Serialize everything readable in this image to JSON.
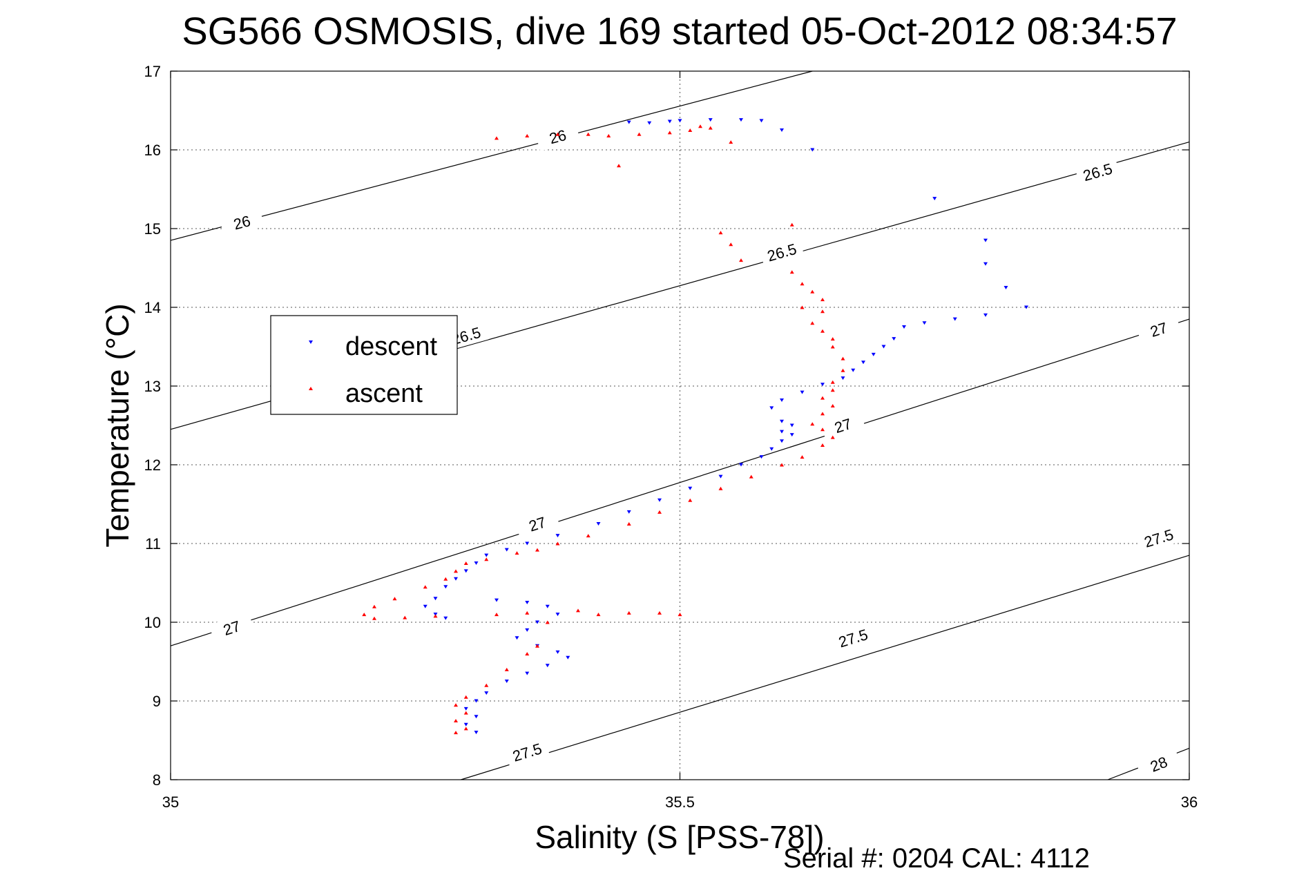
{
  "chart_data": {
    "type": "scatter",
    "title": "SG566 OSMOSIS, dive 169 started 05-Oct-2012 08:34:57",
    "xlabel": "Salinity (S [PSS-78])",
    "ylabel": "Temperature (°C)",
    "footer": "Serial #: 0204  CAL: 4112",
    "xlim": [
      35,
      36
    ],
    "ylim": [
      8,
      17
    ],
    "x_ticks": [
      35,
      35.5,
      36
    ],
    "y_ticks": [
      8,
      9,
      10,
      11,
      12,
      13,
      14,
      15,
      16,
      17
    ],
    "x_tick_labels": [
      "35",
      "35.5",
      "36"
    ],
    "y_tick_labels": [
      "8",
      "9",
      "10",
      "11",
      "12",
      "13",
      "14",
      "15",
      "16",
      "17"
    ],
    "grid": true,
    "legend_position": "left",
    "colors": {
      "descent": "#0000ff",
      "ascent": "#ff0000",
      "contour": "#000000"
    },
    "density_contours": [
      {
        "level": "26",
        "line": [
          [
            35,
            14.85
          ],
          [
            35.63,
            17.0
          ]
        ],
        "labels": [
          [
            35.07,
            15.08
          ],
          [
            35.38,
            16.17
          ]
        ]
      },
      {
        "level": "26.5",
        "line": [
          [
            35,
            12.45
          ],
          [
            36,
            16.1
          ]
        ],
        "labels": [
          [
            35.29,
            13.64
          ],
          [
            35.6,
            14.7
          ],
          [
            35.91,
            15.72
          ]
        ]
      },
      {
        "level": "27",
        "line": [
          [
            35,
            9.7
          ],
          [
            36,
            13.85
          ]
        ],
        "labels": [
          [
            35.06,
            9.93
          ],
          [
            35.36,
            11.25
          ],
          [
            35.66,
            12.5
          ],
          [
            35.97,
            13.72
          ]
        ]
      },
      {
        "level": "27.5",
        "line": [
          [
            35.285,
            8.0
          ],
          [
            36,
            10.85
          ]
        ],
        "labels": [
          [
            35.35,
            8.35
          ],
          [
            35.67,
            9.8
          ],
          [
            35.97,
            11.07
          ]
        ]
      },
      {
        "level": "28",
        "line": [
          [
            35.92,
            8.0
          ],
          [
            36,
            8.4
          ]
        ],
        "labels": [
          [
            35.97,
            8.2
          ]
        ]
      }
    ],
    "series": [
      {
        "name": "descent",
        "marker": "triangle-down",
        "points": [
          [
            35.45,
            16.35
          ],
          [
            35.47,
            16.34
          ],
          [
            35.49,
            16.36
          ],
          [
            35.5,
            16.37
          ],
          [
            35.53,
            16.38
          ],
          [
            35.56,
            16.38
          ],
          [
            35.58,
            16.37
          ],
          [
            35.6,
            16.25
          ],
          [
            35.63,
            16.0
          ],
          [
            35.75,
            15.38
          ],
          [
            35.8,
            14.85
          ],
          [
            35.8,
            14.55
          ],
          [
            35.82,
            14.25
          ],
          [
            35.84,
            14.0
          ],
          [
            35.8,
            13.9
          ],
          [
            35.77,
            13.85
          ],
          [
            35.74,
            13.8
          ],
          [
            35.72,
            13.75
          ],
          [
            35.71,
            13.6
          ],
          [
            35.7,
            13.5
          ],
          [
            35.69,
            13.4
          ],
          [
            35.68,
            13.3
          ],
          [
            35.67,
            13.2
          ],
          [
            35.66,
            13.1
          ],
          [
            35.64,
            13.02
          ],
          [
            35.62,
            12.92
          ],
          [
            35.6,
            12.82
          ],
          [
            35.59,
            12.72
          ],
          [
            35.6,
            12.55
          ],
          [
            35.61,
            12.5
          ],
          [
            35.6,
            12.42
          ],
          [
            35.61,
            12.38
          ],
          [
            35.6,
            12.3
          ],
          [
            35.59,
            12.2
          ],
          [
            35.58,
            12.1
          ],
          [
            35.56,
            12.0
          ],
          [
            35.54,
            11.85
          ],
          [
            35.51,
            11.7
          ],
          [
            35.48,
            11.55
          ],
          [
            35.45,
            11.4
          ],
          [
            35.42,
            11.25
          ],
          [
            35.38,
            11.1
          ],
          [
            35.35,
            11.0
          ],
          [
            35.33,
            10.92
          ],
          [
            35.31,
            10.85
          ],
          [
            35.3,
            10.75
          ],
          [
            35.29,
            10.65
          ],
          [
            35.28,
            10.55
          ],
          [
            35.27,
            10.45
          ],
          [
            35.26,
            10.3
          ],
          [
            35.25,
            10.2
          ],
          [
            35.26,
            10.1
          ],
          [
            35.27,
            10.05
          ],
          [
            35.32,
            10.28
          ],
          [
            35.35,
            10.25
          ],
          [
            35.37,
            10.2
          ],
          [
            35.38,
            10.1
          ],
          [
            35.36,
            10.0
          ],
          [
            35.35,
            9.9
          ],
          [
            35.34,
            9.8
          ],
          [
            35.36,
            9.7
          ],
          [
            35.38,
            9.62
          ],
          [
            35.39,
            9.55
          ],
          [
            35.37,
            9.45
          ],
          [
            35.35,
            9.35
          ],
          [
            35.33,
            9.25
          ],
          [
            35.31,
            9.1
          ],
          [
            35.3,
            9.0
          ],
          [
            35.29,
            8.9
          ],
          [
            35.3,
            8.8
          ],
          [
            35.29,
            8.7
          ],
          [
            35.3,
            8.6
          ]
        ]
      },
      {
        "name": "ascent",
        "marker": "triangle-up",
        "points": [
          [
            35.32,
            16.15
          ],
          [
            35.35,
            16.18
          ],
          [
            35.38,
            16.2
          ],
          [
            35.41,
            16.2
          ],
          [
            35.43,
            16.18
          ],
          [
            35.46,
            16.2
          ],
          [
            35.49,
            16.22
          ],
          [
            35.51,
            16.25
          ],
          [
            35.52,
            16.3
          ],
          [
            35.53,
            16.28
          ],
          [
            35.55,
            16.1
          ],
          [
            35.61,
            15.05
          ],
          [
            35.44,
            15.8
          ],
          [
            35.54,
            14.95
          ],
          [
            35.55,
            14.8
          ],
          [
            35.56,
            14.6
          ],
          [
            35.61,
            14.45
          ],
          [
            35.62,
            14.3
          ],
          [
            35.63,
            14.2
          ],
          [
            35.64,
            14.1
          ],
          [
            35.62,
            14.0
          ],
          [
            35.64,
            13.95
          ],
          [
            35.63,
            13.8
          ],
          [
            35.64,
            13.7
          ],
          [
            35.65,
            13.6
          ],
          [
            35.65,
            13.5
          ],
          [
            35.66,
            13.35
          ],
          [
            35.66,
            13.2
          ],
          [
            35.65,
            13.05
          ],
          [
            35.65,
            12.95
          ],
          [
            35.64,
            12.85
          ],
          [
            35.65,
            12.75
          ],
          [
            35.64,
            12.65
          ],
          [
            35.63,
            12.52
          ],
          [
            35.64,
            12.45
          ],
          [
            35.65,
            12.35
          ],
          [
            35.64,
            12.25
          ],
          [
            35.62,
            12.1
          ],
          [
            35.6,
            12.0
          ],
          [
            35.57,
            11.85
          ],
          [
            35.54,
            11.7
          ],
          [
            35.51,
            11.55
          ],
          [
            35.48,
            11.4
          ],
          [
            35.45,
            11.25
          ],
          [
            35.41,
            11.1
          ],
          [
            35.38,
            11.0
          ],
          [
            35.36,
            10.92
          ],
          [
            35.34,
            10.88
          ],
          [
            35.31,
            10.8
          ],
          [
            35.29,
            10.75
          ],
          [
            35.28,
            10.65
          ],
          [
            35.27,
            10.55
          ],
          [
            35.25,
            10.45
          ],
          [
            35.22,
            10.3
          ],
          [
            35.2,
            10.2
          ],
          [
            35.19,
            10.1
          ],
          [
            35.2,
            10.05
          ],
          [
            35.23,
            10.06
          ],
          [
            35.26,
            10.08
          ],
          [
            35.32,
            10.1
          ],
          [
            35.35,
            10.12
          ],
          [
            35.4,
            10.15
          ],
          [
            35.42,
            10.1
          ],
          [
            35.45,
            10.12
          ],
          [
            35.48,
            10.12
          ],
          [
            35.5,
            10.1
          ],
          [
            35.37,
            10.0
          ],
          [
            35.36,
            9.7
          ],
          [
            35.35,
            9.6
          ],
          [
            35.33,
            9.4
          ],
          [
            35.31,
            9.2
          ],
          [
            35.29,
            9.05
          ],
          [
            35.28,
            8.95
          ],
          [
            35.29,
            8.85
          ],
          [
            35.28,
            8.75
          ],
          [
            35.29,
            8.65
          ],
          [
            35.28,
            8.6
          ]
        ]
      }
    ]
  }
}
